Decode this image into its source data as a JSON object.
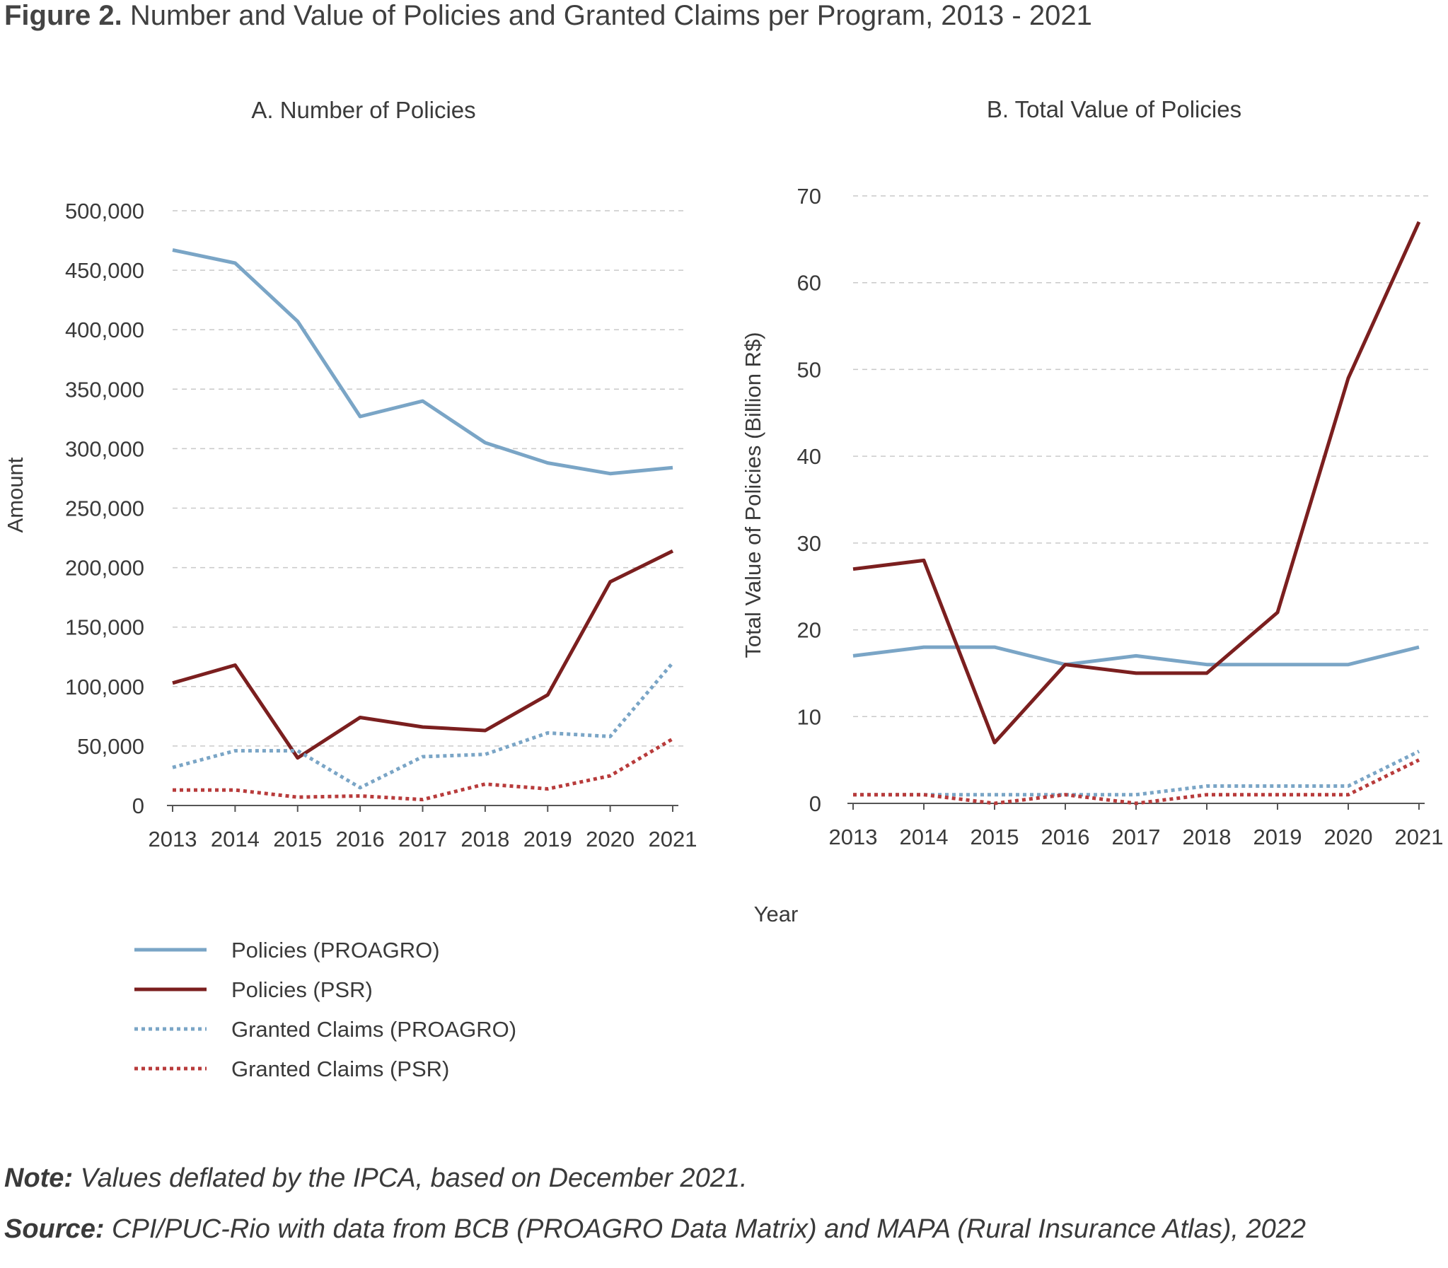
{
  "figure": {
    "label": "Figure 2.",
    "title": "Number and Value of Policies and Granted Claims per Program, 2013 - 2021"
  },
  "chart_data": [
    {
      "type": "line",
      "title": "A. Number of Policies",
      "xlabel": "",
      "ylabel": "Amount",
      "x": [
        "2013",
        "2014",
        "2015",
        "2016",
        "2017",
        "2018",
        "2019",
        "2020",
        "2021"
      ],
      "yticks": [
        "0",
        "50,000",
        "100,000",
        "150,000",
        "200,000",
        "250,000",
        "300,000",
        "350,000",
        "400,000",
        "450,000",
        "500,000"
      ],
      "ylim": [
        0,
        500000
      ],
      "grid": true,
      "series": [
        {
          "name": "Policies (PROAGRO)",
          "color": "#7aa5c6",
          "dash": "solid",
          "values": [
            467000,
            456000,
            407000,
            327000,
            340000,
            305000,
            288000,
            279000,
            284000
          ]
        },
        {
          "name": "Policies (PSR)",
          "color": "#7b1f1f",
          "dash": "solid",
          "values": [
            103000,
            118000,
            40000,
            74000,
            66000,
            63000,
            93000,
            188000,
            214000
          ]
        },
        {
          "name": "Granted Claims (PROAGRO)",
          "color": "#7aa5c6",
          "dash": "dotted",
          "values": [
            32000,
            46000,
            46000,
            15000,
            41000,
            43000,
            61000,
            58000,
            120000
          ]
        },
        {
          "name": "Granted Claims (PSR)",
          "color": "#b83b3b",
          "dash": "dotted",
          "values": [
            13000,
            13000,
            7000,
            8000,
            5000,
            18000,
            14000,
            25000,
            56000
          ]
        }
      ]
    },
    {
      "type": "line",
      "title": "B. Total Value of Policies",
      "xlabel": "Year",
      "ylabel": "Total Value of Policies (Billion R$)",
      "x": [
        "2013",
        "2014",
        "2015",
        "2016",
        "2017",
        "2018",
        "2019",
        "2020",
        "2021"
      ],
      "yticks": [
        "0",
        "10",
        "20",
        "30",
        "40",
        "50",
        "60",
        "70"
      ],
      "ylim": [
        0,
        70
      ],
      "grid": true,
      "series": [
        {
          "name": "Policies (PROAGRO)",
          "color": "#7aa5c6",
          "dash": "solid",
          "values": [
            17,
            18,
            18,
            16,
            17,
            16,
            16,
            16,
            18
          ]
        },
        {
          "name": "Policies (PSR)",
          "color": "#7b1f1f",
          "dash": "solid",
          "values": [
            27,
            28,
            7,
            16,
            15,
            15,
            22,
            49,
            67
          ]
        },
        {
          "name": "Granted Claims (PROAGRO)",
          "color": "#7aa5c6",
          "dash": "dotted",
          "values": [
            1,
            1,
            1,
            1,
            1,
            2,
            2,
            2,
            6
          ]
        },
        {
          "name": "Granted Claims (PSR)",
          "color": "#b83b3b",
          "dash": "dotted",
          "values": [
            1,
            1,
            0,
            1,
            0,
            1,
            1,
            1,
            5
          ]
        }
      ]
    }
  ],
  "legend": {
    "placement": "bottom-left",
    "items": [
      "Policies (PROAGRO)",
      "Policies (PSR)",
      "Granted Claims (PROAGRO)",
      "Granted Claims (PSR)"
    ]
  },
  "footer": {
    "note_label": "Note:",
    "note_text": " Values deflated by the IPCA, based on December 2021.",
    "source_label": "Source:",
    "source_text": " CPI/PUC-Rio with data from BCB (PROAGRO Data Matrix) and MAPA (Rural Insurance Atlas), 2022"
  }
}
